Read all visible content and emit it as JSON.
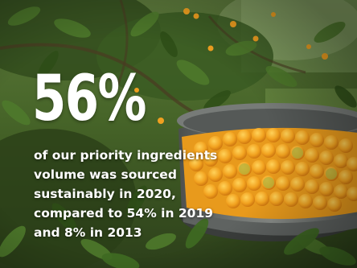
{
  "stat": {
    "value": "56%"
  },
  "caption": {
    "lines": [
      "of our priority ingredients",
      "volume was sourced",
      "sustainably in 2020,",
      "compared to 54% in 2019",
      "and 8% in 2013"
    ]
  },
  "colors": {
    "text": "#ffffff",
    "foliage": "#3b5a22",
    "orange_fruit": "#f0a020",
    "basin": "#6a6e6a"
  }
}
